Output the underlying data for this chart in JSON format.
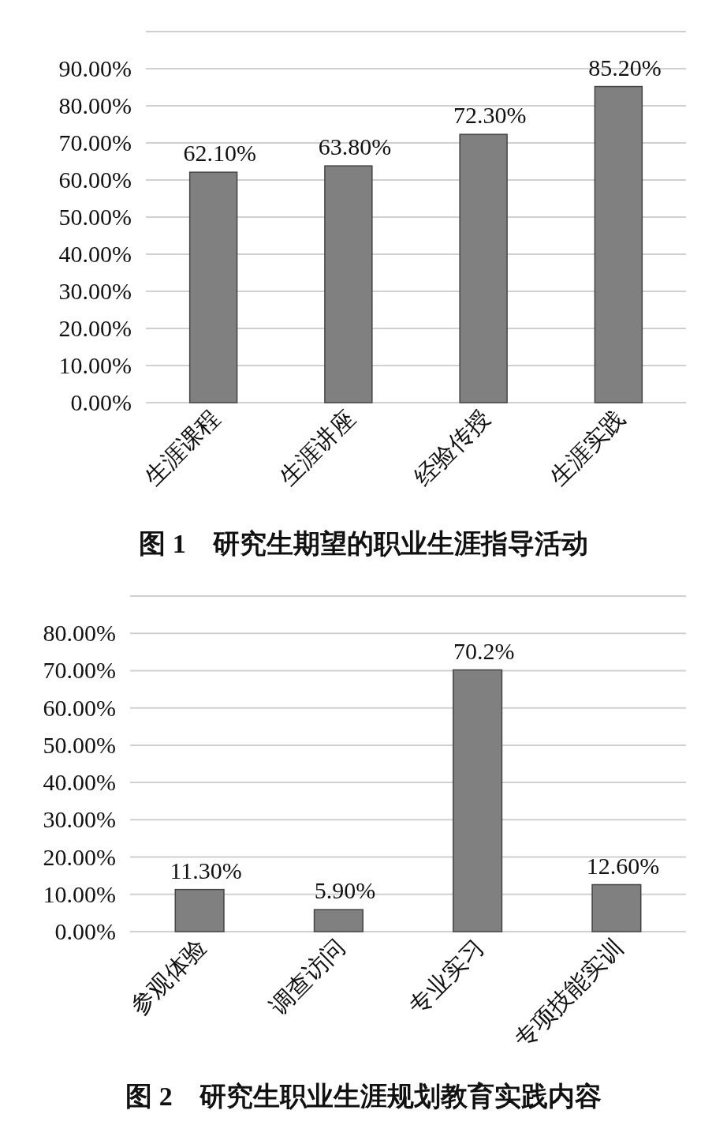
{
  "chart_data": [
    {
      "type": "bar",
      "title": "图 1　研究生期望的职业生涯指导活动",
      "categories": [
        "生涯课程",
        "生涯讲座",
        "经验传授",
        "生涯实践"
      ],
      "values": [
        62.1,
        63.8,
        72.3,
        85.2
      ],
      "value_labels": [
        "62.10%",
        "63.80%",
        "72.30%",
        "85.20%"
      ],
      "color": "#808080",
      "ylim": [
        0,
        100
      ],
      "yticks": [
        {
          "value": 0,
          "label": "0.00%"
        },
        {
          "value": 10,
          "label": "10.00%"
        },
        {
          "value": 20,
          "label": "20.00%"
        },
        {
          "value": 30,
          "label": "30.00%"
        },
        {
          "value": 40,
          "label": "40.00%"
        },
        {
          "value": 50,
          "label": "50.00%"
        },
        {
          "value": 60,
          "label": "60.00%"
        },
        {
          "value": 70,
          "label": "70.00%"
        },
        {
          "value": 80,
          "label": "80.00%"
        },
        {
          "value": 90,
          "label": "90.00%"
        },
        {
          "value": 100,
          "label": null
        }
      ],
      "grid": "y"
    },
    {
      "type": "bar",
      "title": "图 2　研究生职业生涯规划教育实践内容",
      "categories": [
        "参观体验",
        "调查访问",
        "专业实习",
        "专项技能实训"
      ],
      "values": [
        11.3,
        5.9,
        70.2,
        12.6
      ],
      "value_labels": [
        "11.30%",
        "5.90%",
        "70.2%",
        "12.60%"
      ],
      "color": "#808080",
      "ylim": [
        0,
        90
      ],
      "yticks": [
        {
          "value": 0,
          "label": "0.00%"
        },
        {
          "value": 10,
          "label": "10.00%"
        },
        {
          "value": 20,
          "label": "20.00%"
        },
        {
          "value": 30,
          "label": "30.00%"
        },
        {
          "value": 40,
          "label": "40.00%"
        },
        {
          "value": 50,
          "label": "50.00%"
        },
        {
          "value": 60,
          "label": "60.00%"
        },
        {
          "value": 70,
          "label": "70.00%"
        },
        {
          "value": 80,
          "label": "80.00%"
        },
        {
          "value": 90,
          "label": null
        }
      ],
      "grid": "y"
    }
  ]
}
